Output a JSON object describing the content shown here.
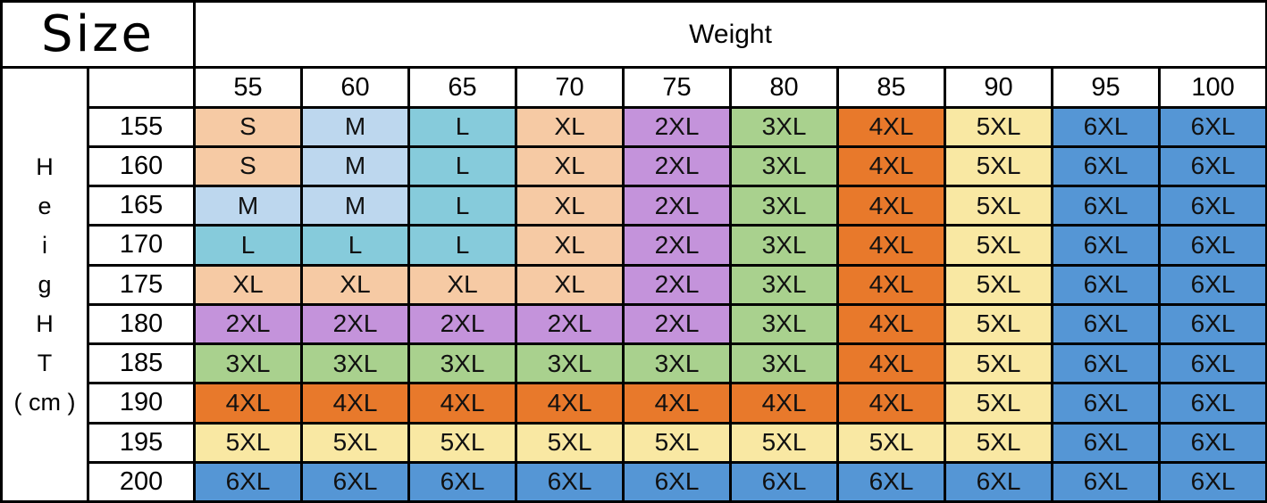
{
  "header": {
    "size_label": "Size",
    "weight_label": "Weight"
  },
  "height_axis": {
    "letters": [
      "H",
      "e",
      "i",
      "g",
      "H",
      "T",
      "( cm )"
    ]
  },
  "chart_data": {
    "type": "table",
    "title": "Size",
    "column_group_label": "Weight",
    "row_group_label": "HeigHT ( cm )",
    "columns": [
      "55",
      "60",
      "65",
      "70",
      "75",
      "80",
      "85",
      "90",
      "95",
      "100"
    ],
    "rows": [
      "155",
      "160",
      "165",
      "170",
      "175",
      "180",
      "185",
      "190",
      "195",
      "200"
    ],
    "cells": [
      [
        "S",
        "M",
        "L",
        "XL",
        "2XL",
        "3XL",
        "4XL",
        "5XL",
        "6XL",
        "6XL"
      ],
      [
        "S",
        "M",
        "L",
        "XL",
        "2XL",
        "3XL",
        "4XL",
        "5XL",
        "6XL",
        "6XL"
      ],
      [
        "M",
        "M",
        "L",
        "XL",
        "2XL",
        "3XL",
        "4XL",
        "5XL",
        "6XL",
        "6XL"
      ],
      [
        "L",
        "L",
        "L",
        "XL",
        "2XL",
        "3XL",
        "4XL",
        "5XL",
        "6XL",
        "6XL"
      ],
      [
        "XL",
        "XL",
        "XL",
        "XL",
        "2XL",
        "3XL",
        "4XL",
        "5XL",
        "6XL",
        "6XL"
      ],
      [
        "2XL",
        "2XL",
        "2XL",
        "2XL",
        "2XL",
        "3XL",
        "4XL",
        "5XL",
        "6XL",
        "6XL"
      ],
      [
        "3XL",
        "3XL",
        "3XL",
        "3XL",
        "3XL",
        "3XL",
        "4XL",
        "5XL",
        "6XL",
        "6XL"
      ],
      [
        "4XL",
        "4XL",
        "4XL",
        "4XL",
        "4XL",
        "4XL",
        "4XL",
        "5XL",
        "6XL",
        "6XL"
      ],
      [
        "5XL",
        "5XL",
        "5XL",
        "5XL",
        "5XL",
        "5XL",
        "5XL",
        "5XL",
        "6XL",
        "6XL"
      ],
      [
        "6XL",
        "6XL",
        "6XL",
        "6XL",
        "6XL",
        "6XL",
        "6XL",
        "6XL",
        "6XL",
        "6XL"
      ]
    ],
    "size_colors": {
      "S": "#F6CAA4",
      "M": "#BDD7EE",
      "L": "#86CBDB",
      "XL": "#F6CAA4",
      "2XL": "#C493DB",
      "3XL": "#A9D18E",
      "4XL": "#E8792B",
      "5XL": "#F9E8A3",
      "6XL": "#5596D5"
    },
    "layout": {
      "grid": "on",
      "border_color": "#000000",
      "header_background": "#FFFFFF"
    }
  }
}
